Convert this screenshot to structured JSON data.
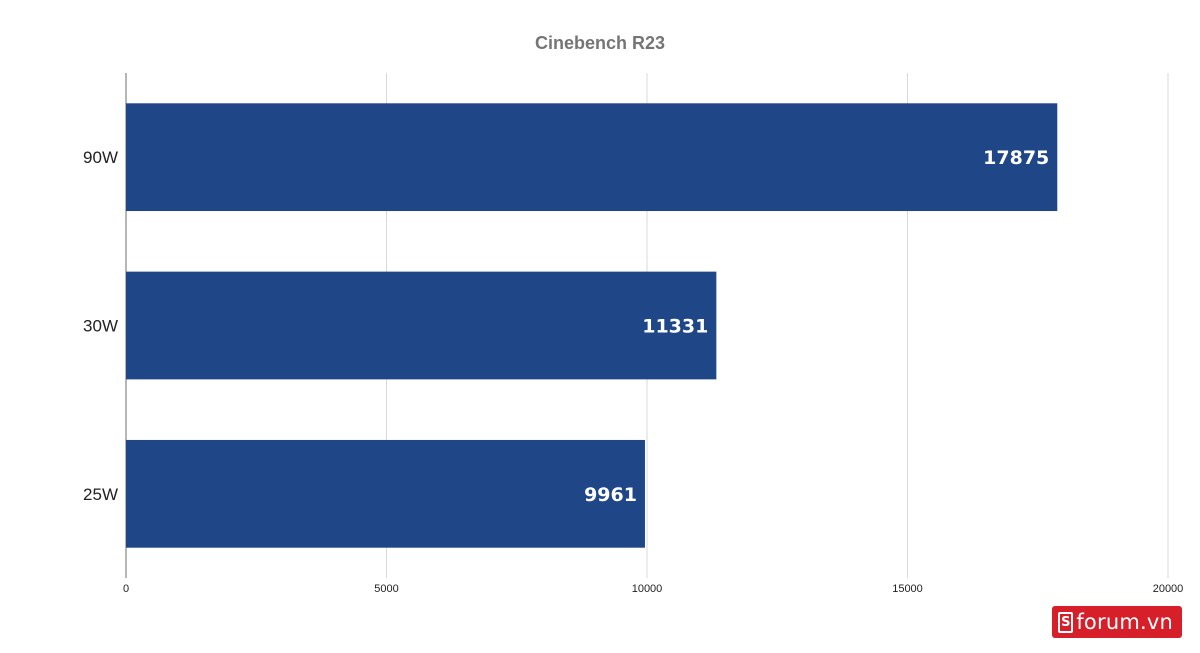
{
  "chart_data": {
    "type": "bar",
    "orientation": "horizontal",
    "title": "Cinebench R23",
    "categories": [
      "90W",
      "30W",
      "25W"
    ],
    "values": [
      17875,
      11331,
      9961
    ],
    "data_labels": [
      "17875",
      "11331",
      "9961"
    ],
    "xlim": [
      0,
      20000
    ],
    "x_ticks": [
      0,
      5000,
      10000,
      15000,
      20000
    ],
    "x_tick_labels": [
      "0",
      "5000",
      "10000",
      "15000",
      "20000"
    ],
    "xlabel": "",
    "ylabel": "",
    "grid": true,
    "legend": "none",
    "bar_color": "#1f4788",
    "grid_color": "#d9d9d9",
    "axis_color": "#9e9e9e",
    "title_color": "#757575"
  },
  "watermark": {
    "icon": "s-logo-icon",
    "icon_glyph": "S",
    "text": "forum.vn",
    "color": "#d71f2a"
  }
}
